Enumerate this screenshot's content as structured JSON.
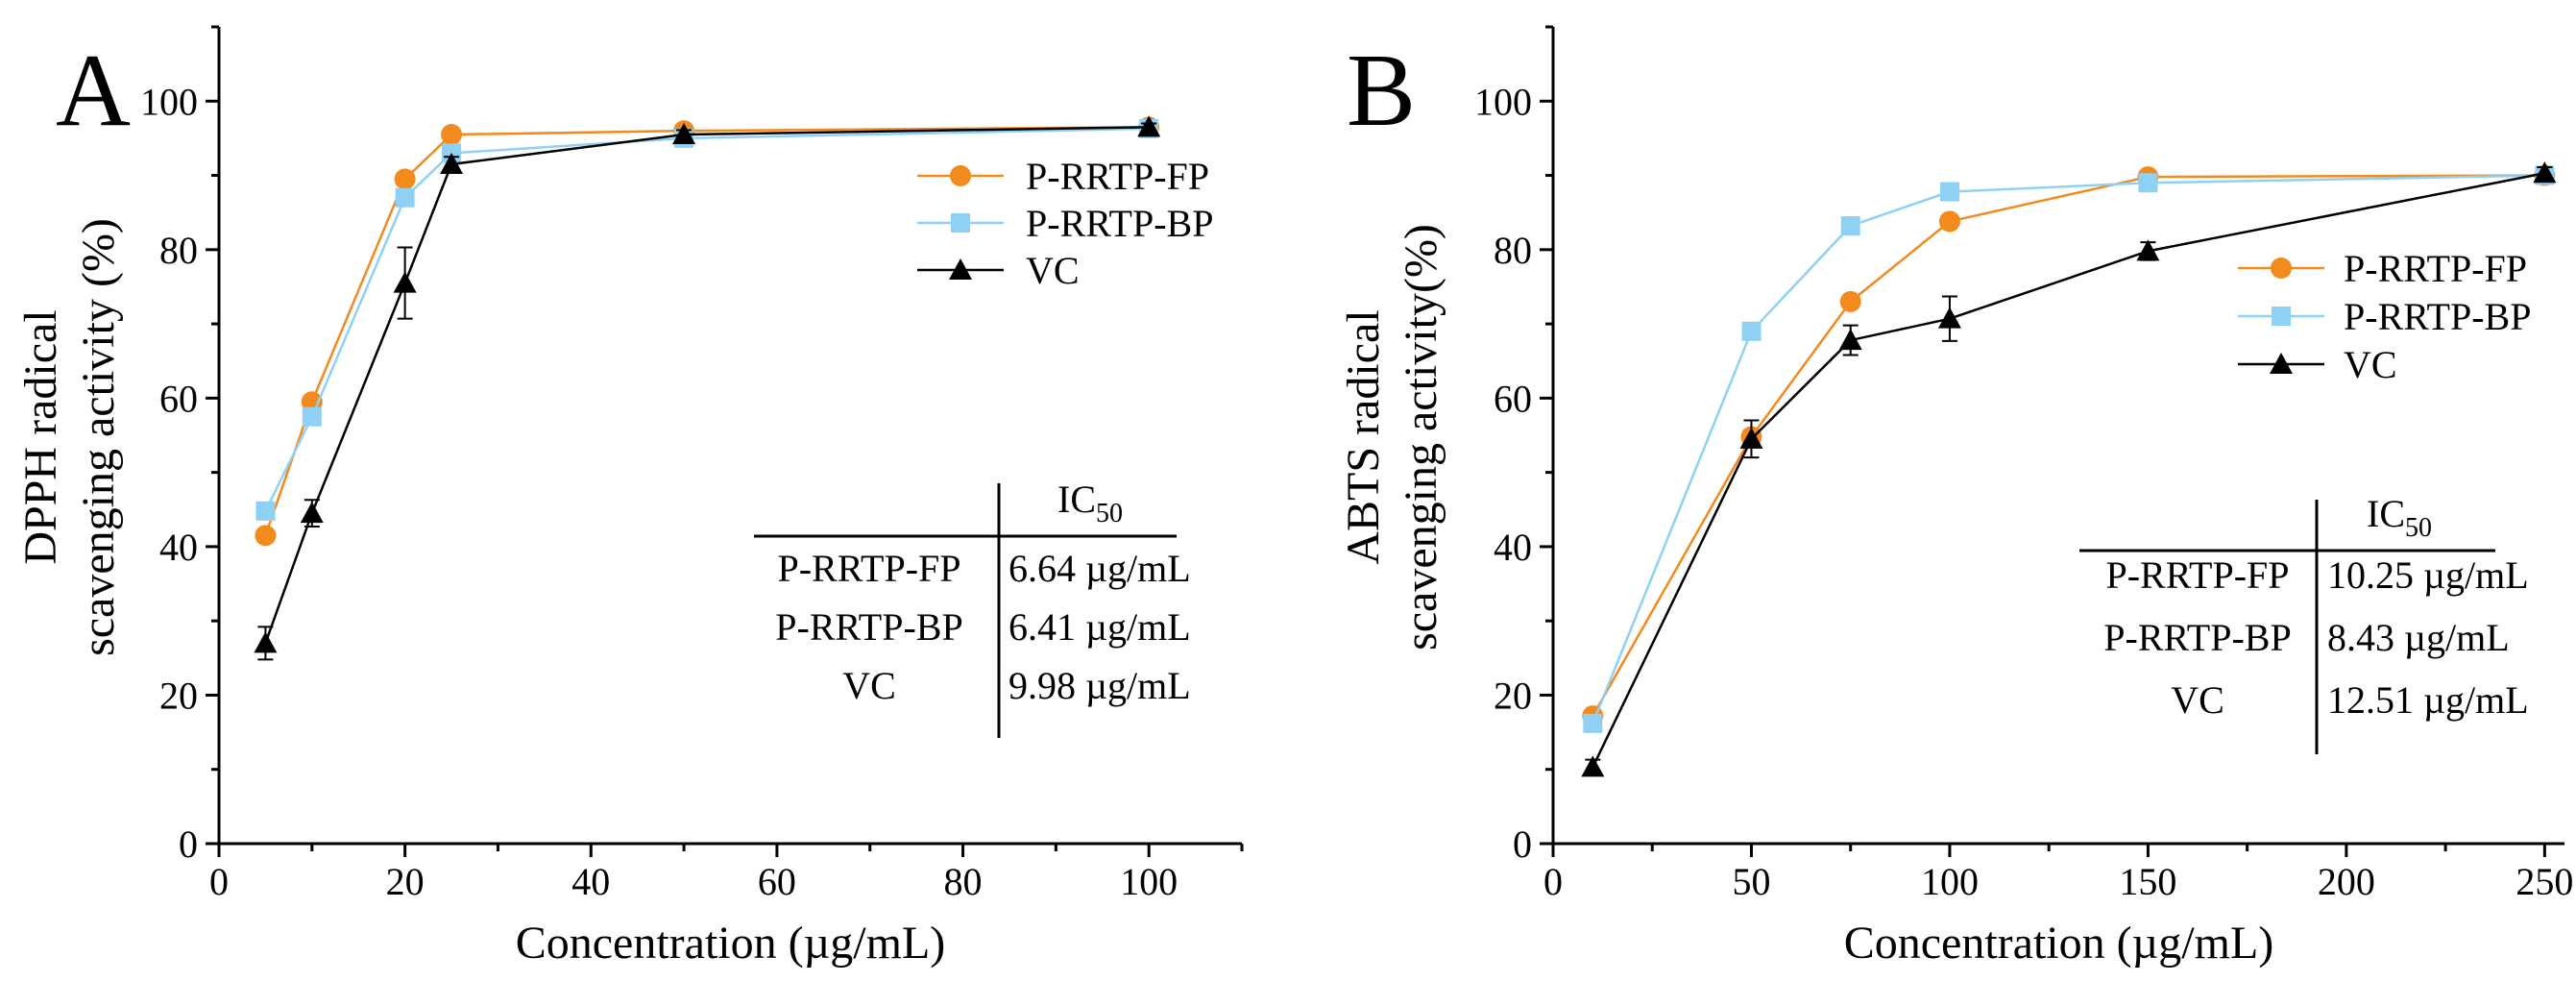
{
  "chart_data": [
    {
      "panel_label": "A",
      "type": "line",
      "xlabel": "Concentration (µg/mL)",
      "ylabel_lines": [
        "DPPH radical",
        "scavenging activity (%)"
      ],
      "xlim": [
        0,
        110
      ],
      "ylim": [
        0,
        110
      ],
      "xticks": [
        0,
        20,
        40,
        60,
        80,
        100
      ],
      "yticks": [
        0,
        20,
        40,
        60,
        80,
        100
      ],
      "x": [
        5,
        10,
        20,
        25,
        50,
        100
      ],
      "series": [
        {
          "name": "P-RRTP-FP",
          "color": "#f28a1e",
          "marker": "circle",
          "values": [
            41.5,
            59.5,
            89.5,
            95.5,
            96.0,
            96.5
          ],
          "errors": [
            0,
            0,
            0,
            0,
            0,
            0
          ]
        },
        {
          "name": "P-RRTP-BP",
          "color": "#8fd0f5",
          "marker": "square",
          "values": [
            44.8,
            57.5,
            87.0,
            93.0,
            95.0,
            96.3
          ],
          "errors": [
            0,
            0,
            0,
            0,
            0,
            0
          ]
        },
        {
          "name": "VC",
          "color": "#000000",
          "marker": "triangle",
          "values": [
            27.0,
            44.5,
            75.5,
            91.5,
            95.5,
            96.5
          ],
          "errors": [
            2.2,
            1.8,
            4.8,
            1.0,
            0.6,
            0.5
          ]
        }
      ],
      "legend": {
        "position": "top-right"
      },
      "ic50_table": {
        "header": "IC",
        "header_sub": "50",
        "rows": [
          {
            "name": "P-RRTP-FP",
            "value": "6.64 µg/mL"
          },
          {
            "name": "P-RRTP-BP",
            "value": "6.41 µg/mL"
          },
          {
            "name": "VC",
            "value": "9.98 µg/mL"
          }
        ]
      }
    },
    {
      "panel_label": "B",
      "type": "line",
      "xlabel": "Concentration (µg/mL)",
      "ylabel_lines": [
        "ABTS radical",
        "scavenging activity(%)"
      ],
      "xlim": [
        0,
        255
      ],
      "ylim": [
        0,
        110
      ],
      "xticks": [
        0,
        50,
        100,
        150,
        200,
        250
      ],
      "yticks": [
        0,
        20,
        40,
        60,
        80,
        100
      ],
      "x": [
        10,
        50,
        75,
        100,
        150,
        250
      ],
      "series": [
        {
          "name": "P-RRTP-FP",
          "color": "#f28a1e",
          "marker": "circle",
          "values": [
            17.2,
            54.8,
            73.0,
            83.8,
            89.8,
            90.0
          ],
          "errors": [
            0,
            0,
            0,
            0,
            0,
            0
          ]
        },
        {
          "name": "P-RRTP-BP",
          "color": "#8fd0f5",
          "marker": "square",
          "values": [
            16.2,
            69.0,
            83.2,
            87.8,
            89.0,
            90.0
          ],
          "errors": [
            0,
            0,
            0,
            0,
            0,
            0
          ]
        },
        {
          "name": "VC",
          "color": "#000000",
          "marker": "triangle",
          "values": [
            10.3,
            54.5,
            67.8,
            70.7,
            79.8,
            90.3
          ],
          "errors": [
            1.0,
            2.5,
            2.0,
            3.0,
            1.2,
            0.8
          ]
        }
      ],
      "legend": {
        "position": "center-right"
      },
      "ic50_table": {
        "header": "IC",
        "header_sub": "50",
        "rows": [
          {
            "name": "P-RRTP-FP",
            "value": "10.25 µg/mL"
          },
          {
            "name": "P-RRTP-BP",
            "value": "8.43 µg/mL"
          },
          {
            "name": "VC",
            "value": "12.51 µg/mL"
          }
        ]
      }
    }
  ]
}
